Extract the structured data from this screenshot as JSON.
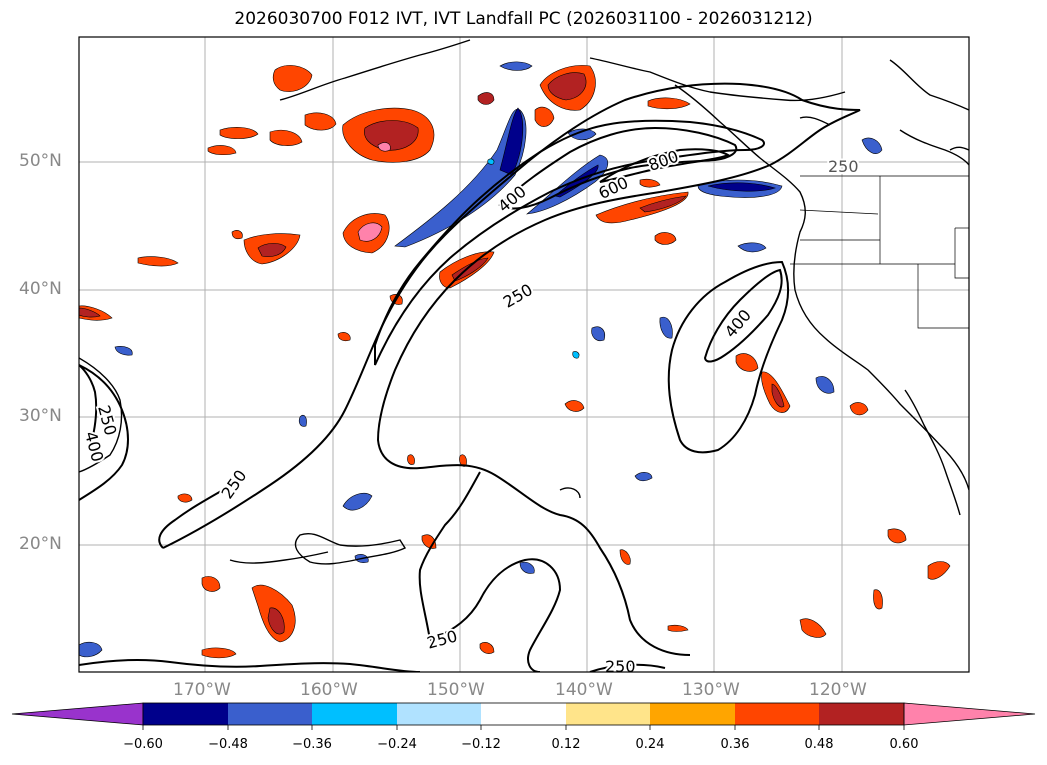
{
  "title": "2026030700 F012 IVT, IVT Landfall PC (2026031100 - 2026031212)",
  "map": {
    "lat_labels": [
      "50°N",
      "40°N",
      "30°N",
      "20°N"
    ],
    "lon_labels": [
      "170°W",
      "160°W",
      "150°W",
      "140°W",
      "130°W",
      "120°W"
    ],
    "contour_labels": [
      "250",
      "400",
      "600",
      "800",
      "250",
      "250",
      "400",
      "250",
      "400",
      "250",
      "250",
      "250"
    ]
  },
  "colorbar": {
    "ticks": [
      "−0.60",
      "−0.48",
      "−0.36",
      "−0.24",
      "−0.12",
      "0.12",
      "0.24",
      "0.36",
      "0.48",
      "0.60"
    ],
    "colors": [
      "#9933cc",
      "#00008b",
      "#3a5fcd",
      "#00bfff",
      "#b0e2ff",
      "#ffffff",
      "#ffe48a",
      "#ffa500",
      "#ff4500",
      "#b22222",
      "#ff82ab"
    ]
  }
}
